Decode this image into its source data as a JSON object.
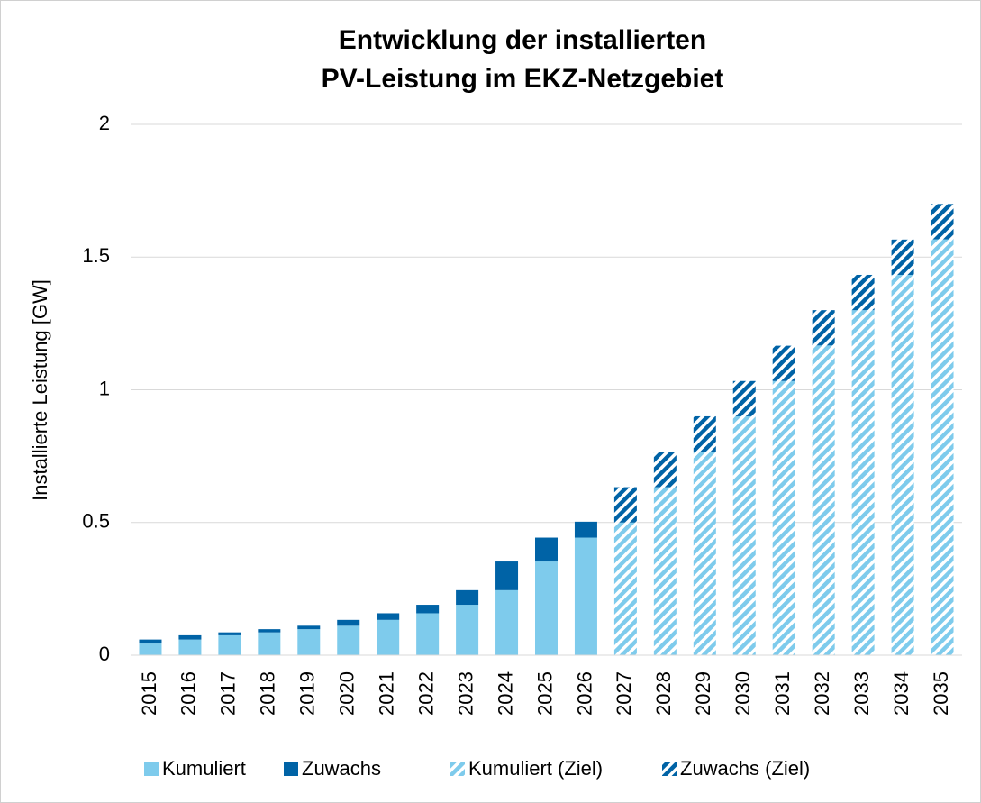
{
  "chart_data": {
    "type": "stacked_bar",
    "title": [
      "Entwicklung der installierten",
      "PV-Leistung im EKZ-Netzgebiet"
    ],
    "ylabel": "Installierte Leistung [GW]",
    "categories": [
      "2015",
      "2016",
      "2017",
      "2018",
      "2019",
      "2020",
      "2021",
      "2022",
      "2023",
      "2024",
      "2025",
      "2026",
      "2027",
      "2028",
      "2029",
      "2030",
      "2031",
      "2032",
      "2033",
      "2034",
      "2035"
    ],
    "series": [
      {
        "name": "Kumuliert",
        "color": "#7ecbec",
        "values": [
          0.044,
          0.059,
          0.075,
          0.086,
          0.098,
          0.111,
          0.133,
          0.158,
          0.19,
          0.245,
          0.353,
          0.443,
          null,
          null,
          null,
          null,
          null,
          null,
          null,
          null,
          null
        ]
      },
      {
        "name": "Zuwachs",
        "color": "#0063a6",
        "values": [
          0.015,
          0.016,
          0.011,
          0.012,
          0.013,
          0.022,
          0.025,
          0.032,
          0.055,
          0.108,
          0.09,
          0.06,
          null,
          null,
          null,
          null,
          null,
          null,
          null,
          null,
          null
        ]
      },
      {
        "name": "Kumuliert (Ziel)",
        "color": "#7ecbec",
        "pattern": "diagonal",
        "values": [
          null,
          null,
          null,
          null,
          null,
          null,
          null,
          null,
          null,
          null,
          null,
          null,
          0.5,
          0.633,
          0.767,
          0.9,
          1.033,
          1.167,
          1.3,
          1.433,
          1.567
        ]
      },
      {
        "name": "Zuwachs (Ziel)",
        "color": "#0063a6",
        "pattern": "diagonal",
        "values": [
          null,
          null,
          null,
          null,
          null,
          null,
          null,
          null,
          null,
          null,
          null,
          null,
          0.133,
          0.133,
          0.133,
          0.133,
          0.133,
          0.133,
          0.133,
          0.133,
          0.133
        ]
      }
    ],
    "ylim": [
      0,
      2
    ],
    "yticks": [
      0,
      0.5,
      1,
      1.5,
      2
    ],
    "grid": true,
    "legend": "bottom"
  }
}
